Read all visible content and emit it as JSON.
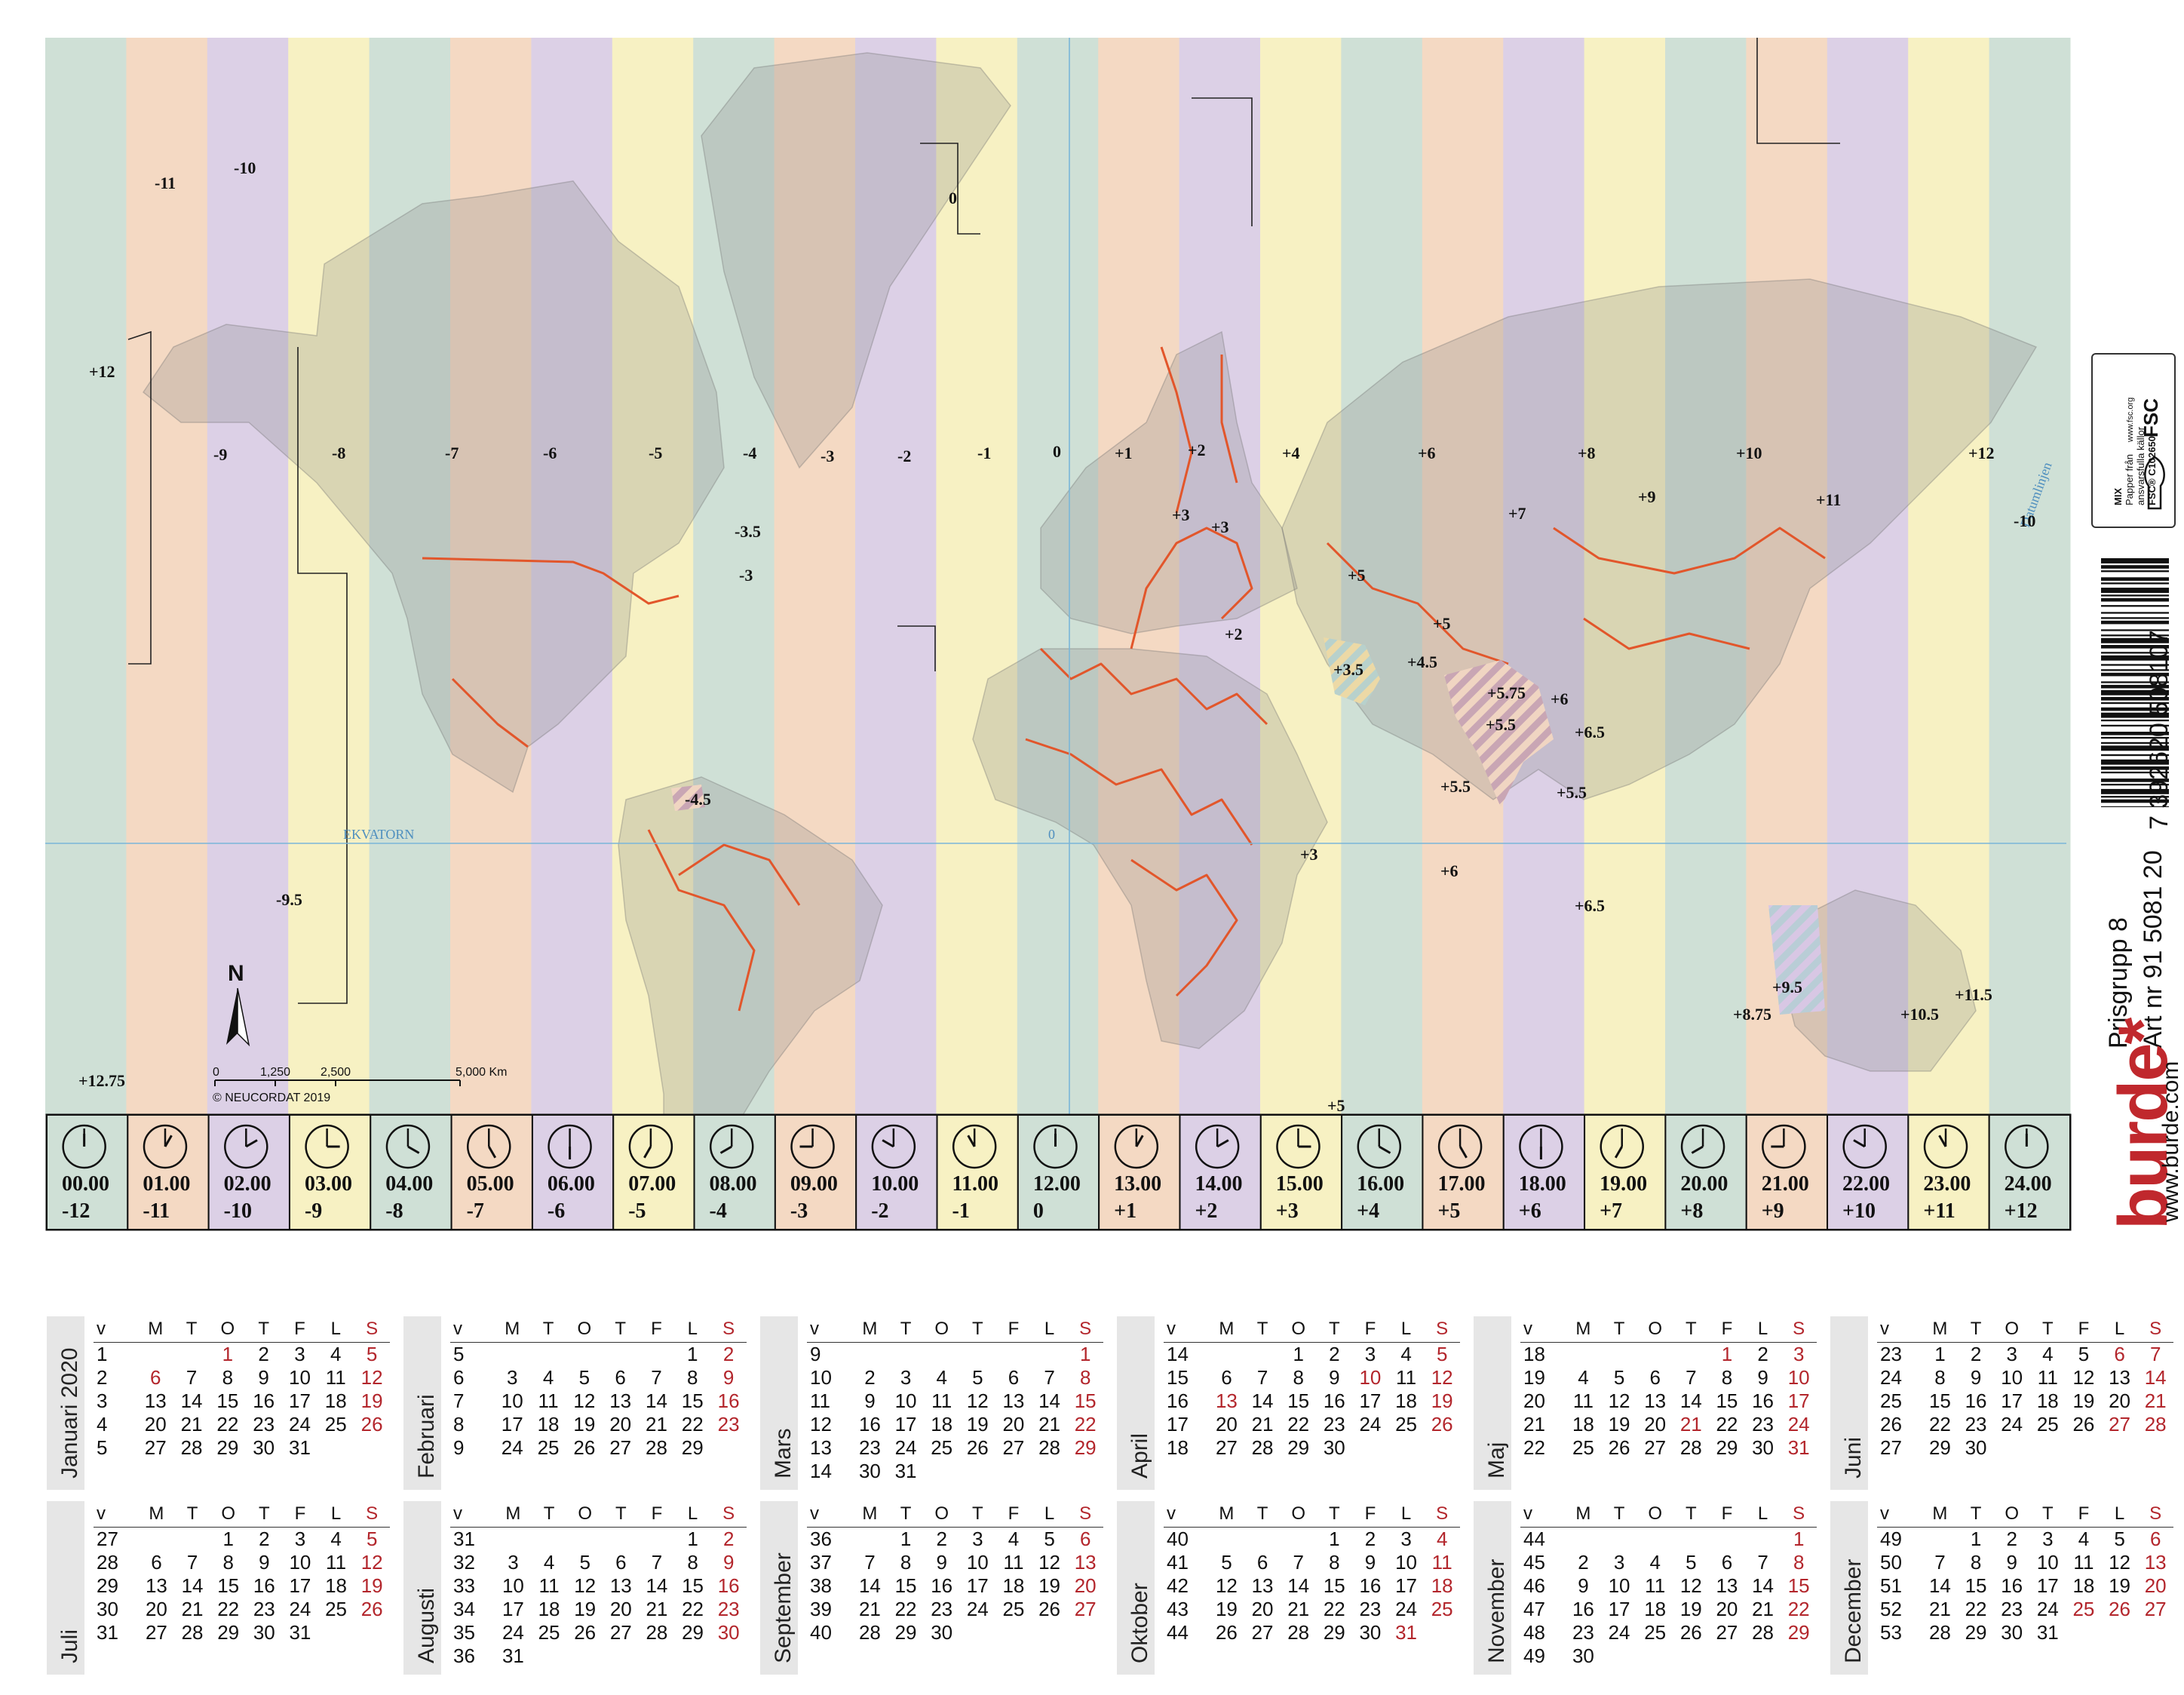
{
  "map": {
    "zone_labels": [
      {
        "id": "m11",
        "text": "-11"
      },
      {
        "id": "m10",
        "text": "-10"
      },
      {
        "id": "p12w",
        "text": "+12"
      },
      {
        "id": "m9",
        "text": "-9"
      },
      {
        "id": "m8",
        "text": "-8"
      },
      {
        "id": "m7",
        "text": "-7"
      },
      {
        "id": "m6",
        "text": "-6"
      },
      {
        "id": "m5",
        "text": "-5"
      },
      {
        "id": "m4",
        "text": "-4"
      },
      {
        "id": "m3",
        "text": "-3"
      },
      {
        "id": "m2",
        "text": "-2"
      },
      {
        "id": "m1",
        "text": "-1"
      },
      {
        "id": "z0",
        "text": "0"
      },
      {
        "id": "z0g",
        "text": "0"
      },
      {
        "id": "p1",
        "text": "+1"
      },
      {
        "id": "p2",
        "text": "+2"
      },
      {
        "id": "p3a",
        "text": "+3"
      },
      {
        "id": "p3b",
        "text": "+3"
      },
      {
        "id": "p4",
        "text": "+4"
      },
      {
        "id": "p6",
        "text": "+6"
      },
      {
        "id": "p8",
        "text": "+8"
      },
      {
        "id": "p10",
        "text": "+10"
      },
      {
        "id": "p12",
        "text": "+12"
      },
      {
        "id": "m10e",
        "text": "-10"
      },
      {
        "id": "p7",
        "text": "+7"
      },
      {
        "id": "p9",
        "text": "+9"
      },
      {
        "id": "p11",
        "text": "+11"
      },
      {
        "id": "p5",
        "text": "+5"
      },
      {
        "id": "p5b",
        "text": "+5"
      },
      {
        "id": "p2b",
        "text": "+2"
      },
      {
        "id": "p35",
        "text": "+3.5"
      },
      {
        "id": "p45",
        "text": "+4.5"
      },
      {
        "id": "p575",
        "text": "+5.75"
      },
      {
        "id": "p6b",
        "text": "+6"
      },
      {
        "id": "p55",
        "text": "+5.5"
      },
      {
        "id": "p65",
        "text": "+6.5"
      },
      {
        "id": "p55b",
        "text": "+5.5"
      },
      {
        "id": "p55c",
        "text": "+5.5"
      },
      {
        "id": "p3c",
        "text": "+3"
      },
      {
        "id": "p6c",
        "text": "+6"
      },
      {
        "id": "p65b",
        "text": "+6.5"
      },
      {
        "id": "p95",
        "text": "+9.5"
      },
      {
        "id": "p875",
        "text": "+8.75"
      },
      {
        "id": "p105",
        "text": "+10.5"
      },
      {
        "id": "p115",
        "text": "+11.5"
      },
      {
        "id": "m35",
        "text": "-3.5"
      },
      {
        "id": "m3b",
        "text": "-3"
      },
      {
        "id": "m45",
        "text": "-4.5"
      },
      {
        "id": "m95",
        "text": "-9.5"
      },
      {
        "id": "p1275",
        "text": "+12.75"
      },
      {
        "id": "p5c",
        "text": "+5"
      }
    ],
    "equator_label": "EKVATORN",
    "equator_zero": "0",
    "scale": {
      "ticks": [
        "0",
        "1,250",
        "2,500",
        "5,000 Km"
      ]
    },
    "north_label": "N",
    "copyright": "© NEUCORDAT 2019",
    "dateline_label": "Datumlinjen"
  },
  "clocks": [
    {
      "time": "00.00",
      "offset": "-12",
      "color": "#cfe0d6",
      "hour": 0
    },
    {
      "time": "01.00",
      "offset": "-11",
      "color": "#f4d9c3",
      "hour": 1
    },
    {
      "time": "02.00",
      "offset": "-10",
      "color": "#dcd0e6",
      "hour": 2
    },
    {
      "time": "03.00",
      "offset": "-9",
      "color": "#f7f1c3",
      "hour": 3
    },
    {
      "time": "04.00",
      "offset": "-8",
      "color": "#cfe0d6",
      "hour": 4
    },
    {
      "time": "05.00",
      "offset": "-7",
      "color": "#f4d9c3",
      "hour": 5
    },
    {
      "time": "06.00",
      "offset": "-6",
      "color": "#dcd0e6",
      "hour": 6
    },
    {
      "time": "07.00",
      "offset": "-5",
      "color": "#f7f1c3",
      "hour": 7
    },
    {
      "time": "08.00",
      "offset": "-4",
      "color": "#cfe0d6",
      "hour": 8
    },
    {
      "time": "09.00",
      "offset": "-3",
      "color": "#f4d9c3",
      "hour": 9
    },
    {
      "time": "10.00",
      "offset": "-2",
      "color": "#dcd0e6",
      "hour": 10
    },
    {
      "time": "11.00",
      "offset": "-1",
      "color": "#f7f1c3",
      "hour": 11
    },
    {
      "time": "12.00",
      "offset": "0",
      "color": "#cfe0d6",
      "hour": 12
    },
    {
      "time": "13.00",
      "offset": "+1",
      "color": "#f4d9c3",
      "hour": 13
    },
    {
      "time": "14.00",
      "offset": "+2",
      "color": "#dcd0e6",
      "hour": 14
    },
    {
      "time": "15.00",
      "offset": "+3",
      "color": "#f7f1c3",
      "hour": 15
    },
    {
      "time": "16.00",
      "offset": "+4",
      "color": "#cfe0d6",
      "hour": 16
    },
    {
      "time": "17.00",
      "offset": "+5",
      "color": "#f4d9c3",
      "hour": 17
    },
    {
      "time": "18.00",
      "offset": "+6",
      "color": "#dcd0e6",
      "hour": 18
    },
    {
      "time": "19.00",
      "offset": "+7",
      "color": "#f7f1c3",
      "hour": 19
    },
    {
      "time": "20.00",
      "offset": "+8",
      "color": "#cfe0d6",
      "hour": 20
    },
    {
      "time": "21.00",
      "offset": "+9",
      "color": "#f4d9c3",
      "hour": 21
    },
    {
      "time": "22.00",
      "offset": "+10",
      "color": "#dcd0e6",
      "hour": 22
    },
    {
      "time": "23.00",
      "offset": "+11",
      "color": "#f7f1c3",
      "hour": 23
    },
    {
      "time": "24.00",
      "offset": "+12",
      "color": "#cfe0d6",
      "hour": 24
    }
  ],
  "brand": {
    "prisgrupp": "Prisgrupp 8",
    "artnr": "Art nr 91 5081 20",
    "logo": "burde*",
    "url": "www.burde.com",
    "ean": "7 392620 508107",
    "fsc_lines": [
      "MIX",
      "Papper från",
      "ansvarsfulla källor",
      "FSC® C102650"
    ],
    "fsc_url": "www.fsc.org",
    "fsc_mark": "FSC"
  },
  "calendar": {
    "weekday_headers": [
      "v",
      "M",
      "T",
      "O",
      "T",
      "F",
      "L",
      "S"
    ],
    "months": [
      {
        "name": "Januari 2020",
        "rows": [
          [
            "1",
            "",
            "",
            "1",
            "2",
            "3",
            "4",
            "5"
          ],
          [
            "2",
            "6",
            "7",
            "8",
            "9",
            "10",
            "11",
            "12"
          ],
          [
            "3",
            "13",
            "14",
            "15",
            "16",
            "17",
            "18",
            "19"
          ],
          [
            "4",
            "20",
            "21",
            "22",
            "23",
            "24",
            "25",
            "26"
          ],
          [
            "5",
            "27",
            "28",
            "29",
            "30",
            "31",
            "",
            ""
          ]
        ],
        "red": [
          [
            0,
            3
          ],
          [
            1,
            1
          ]
        ]
      },
      {
        "name": "Februari",
        "rows": [
          [
            "5",
            "",
            "",
            "",
            "",
            "",
            "1",
            "2"
          ],
          [
            "6",
            "3",
            "4",
            "5",
            "6",
            "7",
            "8",
            "9"
          ],
          [
            "7",
            "10",
            "11",
            "12",
            "13",
            "14",
            "15",
            "16"
          ],
          [
            "8",
            "17",
            "18",
            "19",
            "20",
            "21",
            "22",
            "23"
          ],
          [
            "9",
            "24",
            "25",
            "26",
            "27",
            "28",
            "29",
            ""
          ]
        ],
        "red": []
      },
      {
        "name": "Mars",
        "rows": [
          [
            "9",
            "",
            "",
            "",
            "",
            "",
            "",
            "1"
          ],
          [
            "10",
            "2",
            "3",
            "4",
            "5",
            "6",
            "7",
            "8"
          ],
          [
            "11",
            "9",
            "10",
            "11",
            "12",
            "13",
            "14",
            "15"
          ],
          [
            "12",
            "16",
            "17",
            "18",
            "19",
            "20",
            "21",
            "22"
          ],
          [
            "13",
            "23",
            "24",
            "25",
            "26",
            "27",
            "28",
            "29"
          ],
          [
            "14",
            "30",
            "31",
            "",
            "",
            "",
            "",
            ""
          ]
        ],
        "red": []
      },
      {
        "name": "April",
        "rows": [
          [
            "14",
            "",
            "",
            "1",
            "2",
            "3",
            "4",
            "5"
          ],
          [
            "15",
            "6",
            "7",
            "8",
            "9",
            "10",
            "11",
            "12"
          ],
          [
            "16",
            "13",
            "14",
            "15",
            "16",
            "17",
            "18",
            "19"
          ],
          [
            "17",
            "20",
            "21",
            "22",
            "23",
            "24",
            "25",
            "26"
          ],
          [
            "18",
            "27",
            "28",
            "29",
            "30",
            "",
            "",
            ""
          ]
        ],
        "red": [
          [
            1,
            5
          ],
          [
            2,
            1
          ]
        ]
      },
      {
        "name": "Maj",
        "rows": [
          [
            "18",
            "",
            "",
            "",
            "",
            "1",
            "2",
            "3"
          ],
          [
            "19",
            "4",
            "5",
            "6",
            "7",
            "8",
            "9",
            "10"
          ],
          [
            "20",
            "11",
            "12",
            "13",
            "14",
            "15",
            "16",
            "17"
          ],
          [
            "21",
            "18",
            "19",
            "20",
            "21",
            "22",
            "23",
            "24"
          ],
          [
            "22",
            "25",
            "26",
            "27",
            "28",
            "29",
            "30",
            "31"
          ]
        ],
        "red": [
          [
            0,
            5
          ],
          [
            3,
            4
          ]
        ]
      },
      {
        "name": "Juni",
        "rows": [
          [
            "23",
            "1",
            "2",
            "3",
            "4",
            "5",
            "6",
            "7"
          ],
          [
            "24",
            "8",
            "9",
            "10",
            "11",
            "12",
            "13",
            "14"
          ],
          [
            "25",
            "15",
            "16",
            "17",
            "18",
            "19",
            "20",
            "21"
          ],
          [
            "26",
            "22",
            "23",
            "24",
            "25",
            "26",
            "27",
            "28"
          ],
          [
            "27",
            "29",
            "30",
            "",
            "",
            "",
            "",
            ""
          ]
        ],
        "red": [
          [
            0,
            6
          ],
          [
            3,
            6
          ]
        ]
      },
      {
        "name": "Juli",
        "rows": [
          [
            "27",
            "",
            "",
            "1",
            "2",
            "3",
            "4",
            "5"
          ],
          [
            "28",
            "6",
            "7",
            "8",
            "9",
            "10",
            "11",
            "12"
          ],
          [
            "29",
            "13",
            "14",
            "15",
            "16",
            "17",
            "18",
            "19"
          ],
          [
            "30",
            "20",
            "21",
            "22",
            "23",
            "24",
            "25",
            "26"
          ],
          [
            "31",
            "27",
            "28",
            "29",
            "30",
            "31",
            "",
            ""
          ]
        ],
        "red": []
      },
      {
        "name": "Augusti",
        "rows": [
          [
            "31",
            "",
            "",
            "",
            "",
            "",
            "1",
            "2"
          ],
          [
            "32",
            "3",
            "4",
            "5",
            "6",
            "7",
            "8",
            "9"
          ],
          [
            "33",
            "10",
            "11",
            "12",
            "13",
            "14",
            "15",
            "16"
          ],
          [
            "34",
            "17",
            "18",
            "19",
            "20",
            "21",
            "22",
            "23"
          ],
          [
            "35",
            "24",
            "25",
            "26",
            "27",
            "28",
            "29",
            "30"
          ],
          [
            "36",
            "31",
            "",
            "",
            "",
            "",
            "",
            ""
          ]
        ],
        "red": []
      },
      {
        "name": "September",
        "rows": [
          [
            "36",
            "",
            "1",
            "2",
            "3",
            "4",
            "5",
            "6"
          ],
          [
            "37",
            "7",
            "8",
            "9",
            "10",
            "11",
            "12",
            "13"
          ],
          [
            "38",
            "14",
            "15",
            "16",
            "17",
            "18",
            "19",
            "20"
          ],
          [
            "39",
            "21",
            "22",
            "23",
            "24",
            "25",
            "26",
            "27"
          ],
          [
            "40",
            "28",
            "29",
            "30",
            "",
            "",
            "",
            ""
          ]
        ],
        "red": []
      },
      {
        "name": "Oktober",
        "rows": [
          [
            "40",
            "",
            "",
            "",
            "1",
            "2",
            "3",
            "4"
          ],
          [
            "41",
            "5",
            "6",
            "7",
            "8",
            "9",
            "10",
            "11"
          ],
          [
            "42",
            "12",
            "13",
            "14",
            "15",
            "16",
            "17",
            "18"
          ],
          [
            "43",
            "19",
            "20",
            "21",
            "22",
            "23",
            "24",
            "25"
          ],
          [
            "44",
            "26",
            "27",
            "28",
            "29",
            "30",
            "31",
            ""
          ]
        ],
        "red": [
          [
            4,
            6
          ]
        ]
      },
      {
        "name": "November",
        "rows": [
          [
            "44",
            "",
            "",
            "",
            "",
            "",
            "",
            "1"
          ],
          [
            "45",
            "2",
            "3",
            "4",
            "5",
            "6",
            "7",
            "8"
          ],
          [
            "46",
            "9",
            "10",
            "11",
            "12",
            "13",
            "14",
            "15"
          ],
          [
            "47",
            "16",
            "17",
            "18",
            "19",
            "20",
            "21",
            "22"
          ],
          [
            "48",
            "23",
            "24",
            "25",
            "26",
            "27",
            "28",
            "29"
          ],
          [
            "49",
            "30",
            "",
            "",
            "",
            "",
            "",
            ""
          ]
        ],
        "red": []
      },
      {
        "name": "December",
        "rows": [
          [
            "49",
            "",
            "1",
            "2",
            "3",
            "4",
            "5",
            "6"
          ],
          [
            "50",
            "7",
            "8",
            "9",
            "10",
            "11",
            "12",
            "13"
          ],
          [
            "51",
            "14",
            "15",
            "16",
            "17",
            "18",
            "19",
            "20"
          ],
          [
            "52",
            "21",
            "22",
            "23",
            "24",
            "25",
            "26",
            "27"
          ],
          [
            "53",
            "28",
            "29",
            "30",
            "31",
            "",
            "",
            ""
          ]
        ],
        "red": [
          [
            3,
            5
          ],
          [
            3,
            6
          ]
        ]
      }
    ]
  }
}
